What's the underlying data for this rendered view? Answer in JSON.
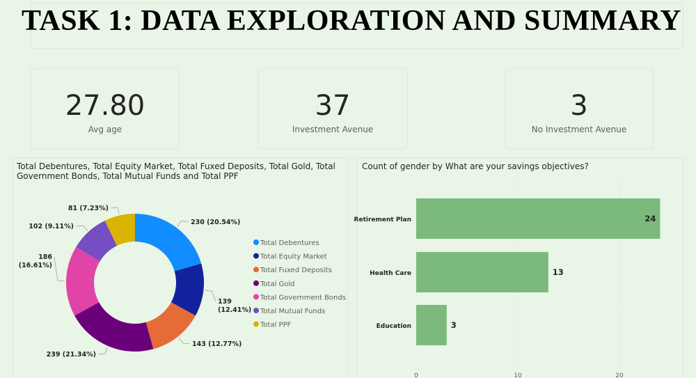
{
  "header": {
    "title": "TASK 1: DATA EXPLORATION AND SUMMARY"
  },
  "kpis": [
    {
      "value": "27.80",
      "label": "Avg age"
    },
    {
      "value": "37",
      "label": "Investment Avenue"
    },
    {
      "value": "3",
      "label": "No Investment Avenue"
    }
  ],
  "chart_data": [
    {
      "type": "pie",
      "title": "Total Debentures, Total Equity Market, Total Fuxed Deposits, Total Gold, Total Government Bonds, Total Mutual Funds and Total PPF",
      "donut": true,
      "legend_position": "right",
      "categories": [
        "Total Debentures",
        "Total Equity Market",
        "Total Fuxed Deposits",
        "Total Gold",
        "Total Government Bonds",
        "Total Mutual Funds",
        "Total PPF"
      ],
      "values": [
        230,
        139,
        143,
        239,
        186,
        102,
        81
      ],
      "percent_labels": [
        "20.54%",
        "12.41%",
        "12.77%",
        "21.34%",
        "16.61%",
        "9.11%",
        "7.23%"
      ],
      "colors": [
        "#118dff",
        "#12239e",
        "#e66c37",
        "#6b007b",
        "#e044a7",
        "#744ec2",
        "#d9b300"
      ]
    },
    {
      "type": "bar",
      "orientation": "horizontal",
      "title": "Count of gender by What are your savings objectives?",
      "categories": [
        "Retirement Plan",
        "Health Care",
        "Education"
      ],
      "values": [
        24,
        13,
        3
      ],
      "x_ticks": [
        "0",
        "10",
        "20"
      ],
      "xlim": [
        0,
        24
      ],
      "color": "#7cb97c",
      "grid": true
    }
  ]
}
